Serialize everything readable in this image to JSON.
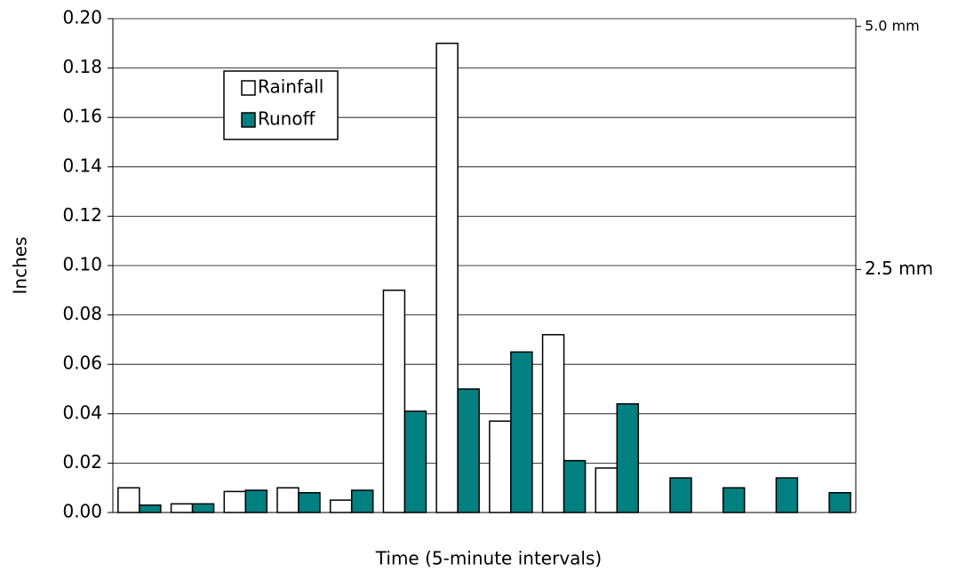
{
  "chart_data": {
    "type": "bar",
    "x_label": "Time (5-minute intervals)",
    "y_label": "Inches",
    "categories": [
      null,
      null,
      null,
      null,
      null,
      null,
      null,
      null,
      null,
      null,
      null,
      null,
      null,
      null
    ],
    "series": [
      {
        "name": "Rainfall",
        "color": "#ffffff",
        "values": [
          0.01,
          0.0035,
          0.0085,
          0.01,
          0.005,
          0.09,
          0.19,
          0.037,
          0.072,
          0.018,
          null,
          null,
          null,
          null
        ]
      },
      {
        "name": "Runoff",
        "color": "#008080",
        "values": [
          0.003,
          0.0035,
          0.009,
          0.008,
          0.009,
          0.041,
          0.05,
          0.065,
          0.021,
          0.044,
          0.014,
          0.01,
          0.014,
          0.008
        ]
      }
    ],
    "ylim": [
      0,
      0.2
    ],
    "yticks": [
      {
        "value": 0,
        "label": "0.00"
      },
      {
        "value": 0.02,
        "label": "0.02"
      },
      {
        "value": 0.04,
        "label": "0.04"
      },
      {
        "value": 0.06,
        "label": "0.06"
      },
      {
        "value": 0.08,
        "label": "0.08"
      },
      {
        "value": 0.1,
        "label": "0.10"
      },
      {
        "value": 0.12,
        "label": "0.12"
      },
      {
        "value": 0.14,
        "label": "0.14"
      },
      {
        "value": 0.16,
        "label": "0.16"
      },
      {
        "value": 0.18,
        "label": "0.18"
      },
      {
        "value": 0.2,
        "label": "0.20"
      }
    ],
    "y2lim": [
      0,
      5.08
    ],
    "y2ticks": [
      {
        "value": 2.5,
        "label": "2.5 mm"
      },
      {
        "value": 5.0,
        "label": "5.0 mm"
      }
    ],
    "grid": true,
    "legend": "upper-left"
  }
}
